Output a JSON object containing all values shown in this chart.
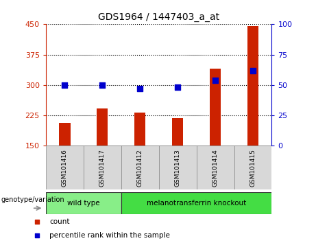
{
  "title": "GDS1964 / 1447403_a_at",
  "samples": [
    "GSM101416",
    "GSM101417",
    "GSM101412",
    "GSM101413",
    "GSM101414",
    "GSM101415"
  ],
  "counts": [
    207,
    242,
    232,
    218,
    340,
    445
  ],
  "percentile_ranks": [
    50,
    50,
    47,
    48,
    54,
    62
  ],
  "ylim_left": [
    150,
    450
  ],
  "ylim_right": [
    0,
    100
  ],
  "yticks_left": [
    150,
    225,
    300,
    375,
    450
  ],
  "yticks_right": [
    0,
    25,
    50,
    75,
    100
  ],
  "bar_color": "#cc2200",
  "dot_color": "#0000cc",
  "grid_color": "#000000",
  "left_axis_color": "#cc2200",
  "right_axis_color": "#0000cc",
  "groups": [
    {
      "label": "wild type",
      "indices": [
        0,
        1
      ],
      "color": "#88ee88"
    },
    {
      "label": "melanotransferrin knockout",
      "indices": [
        2,
        3,
        4,
        5
      ],
      "color": "#44dd44"
    }
  ],
  "genotype_label": "genotype/variation",
  "legend_items": [
    {
      "label": "count",
      "color": "#cc2200"
    },
    {
      "label": "percentile rank within the sample",
      "color": "#0000cc"
    }
  ],
  "sample_bg_color": "#d8d8d8",
  "plot_bg": "#ffffff",
  "bar_bottom": 150,
  "bar_width": 0.3
}
